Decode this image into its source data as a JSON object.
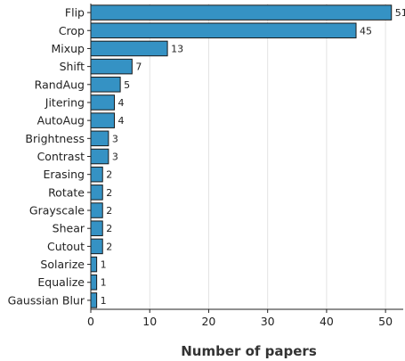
{
  "chart_data": {
    "type": "bar",
    "orientation": "horizontal",
    "categories": [
      "Flip",
      "Crop",
      "Mixup",
      "Shift",
      "RandAug",
      "Jitering",
      "AutoAug",
      "Brightness",
      "Contrast",
      "Erasing",
      "Rotate",
      "Grayscale",
      "Shear",
      "Cutout",
      "Solarize",
      "Equalize",
      "Gaussian Blur"
    ],
    "values": [
      51,
      45,
      13,
      7,
      5,
      4,
      4,
      3,
      3,
      2,
      2,
      2,
      2,
      2,
      1,
      1,
      1
    ],
    "value_labels": [
      "51",
      "45",
      "13",
      "7",
      "5",
      "4",
      "4",
      "3",
      "3",
      "2",
      "2",
      "2",
      "2",
      "2",
      "1",
      "1",
      "1"
    ],
    "xlabel": "Number of papers",
    "ylabel": "",
    "xlim": [
      0,
      53
    ],
    "xticks": [
      0,
      10,
      20,
      30,
      40,
      50
    ],
    "xtick_labels": [
      "0",
      "10",
      "20",
      "30",
      "40",
      "50"
    ],
    "grid": "vertical",
    "bar_color": "#3592c4"
  }
}
